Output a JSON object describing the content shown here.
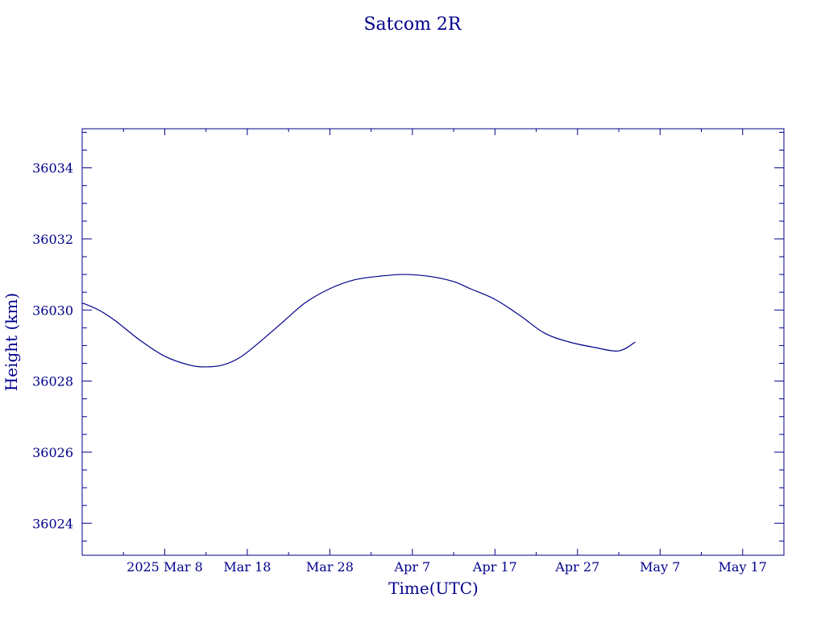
{
  "colors": {
    "ink": "#00008b",
    "background": "#ffffff"
  },
  "chart_data": {
    "type": "line",
    "title": "Satcom 2R",
    "xlabel": "Time(UTC)",
    "ylabel": "Height (km)",
    "xlim": [
      "2025-02-26",
      "2025-05-22"
    ],
    "ylim": [
      36023.1,
      36035.1
    ],
    "grid": false,
    "x_ticks": [
      {
        "date": "2025-03-08",
        "label": "2025 Mar  8"
      },
      {
        "date": "2025-03-18",
        "label": "Mar 18"
      },
      {
        "date": "2025-03-28",
        "label": "Mar 28"
      },
      {
        "date": "2025-04-07",
        "label": "Apr  7"
      },
      {
        "date": "2025-04-17",
        "label": "Apr 17"
      },
      {
        "date": "2025-04-27",
        "label": "Apr 27"
      },
      {
        "date": "2025-05-07",
        "label": "May  7"
      },
      {
        "date": "2025-05-17",
        "label": "May 17"
      }
    ],
    "y_ticks": [
      {
        "value": 36024,
        "label": "36024"
      },
      {
        "value": 36026,
        "label": "36026"
      },
      {
        "value": 36028,
        "label": "36028"
      },
      {
        "value": 36030,
        "label": "36030"
      },
      {
        "value": 36032,
        "label": "36032"
      },
      {
        "value": 36034,
        "label": "36034"
      }
    ],
    "series": [
      {
        "x": [
          "2025-02-26",
          "2025-02-28",
          "2025-03-02",
          "2025-03-05",
          "2025-03-08",
          "2025-03-11",
          "2025-03-13",
          "2025-03-15",
          "2025-03-17",
          "2025-03-19",
          "2025-03-22",
          "2025-03-25",
          "2025-03-28",
          "2025-03-31",
          "2025-04-03",
          "2025-04-06",
          "2025-04-09",
          "2025-04-12",
          "2025-04-14",
          "2025-04-17",
          "2025-04-20",
          "2025-04-23",
          "2025-04-26",
          "2025-04-29",
          "2025-05-02",
          "2025-05-04"
        ],
        "y": [
          36030.2,
          36030.0,
          36029.7,
          36029.15,
          36028.7,
          36028.45,
          36028.4,
          36028.45,
          36028.65,
          36029.0,
          36029.6,
          36030.2,
          36030.6,
          36030.85,
          36030.95,
          36031.0,
          36030.95,
          36030.8,
          36030.6,
          36030.3,
          36029.85,
          36029.35,
          36029.1,
          36028.95,
          36028.85,
          36029.1
        ]
      }
    ]
  }
}
